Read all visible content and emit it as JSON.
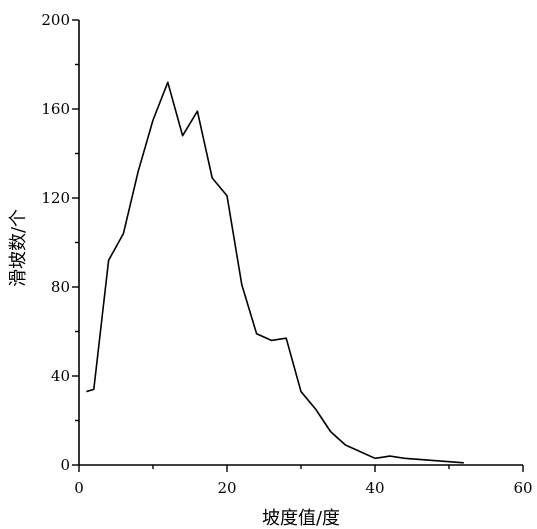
{
  "chart_data": {
    "type": "line",
    "title": "",
    "xlabel": "坡度值/度",
    "ylabel": "滑坡数/个",
    "xlim": [
      0,
      60
    ],
    "ylim": [
      0,
      200
    ],
    "x_ticks": [
      0,
      20,
      40,
      60
    ],
    "y_ticks": [
      0,
      40,
      80,
      120,
      160,
      200
    ],
    "grid": false,
    "legend": "none",
    "series": [
      {
        "x": [
          1,
          2,
          4,
          6,
          8,
          10,
          12,
          14,
          16,
          18,
          20,
          22,
          24,
          26,
          28,
          30,
          32,
          34,
          36,
          38,
          40,
          42,
          44,
          46,
          48,
          50,
          52
        ],
        "y": [
          33,
          34,
          92,
          104,
          132,
          155,
          172,
          148,
          159,
          129,
          121,
          81,
          59,
          56,
          57,
          33,
          25,
          15,
          9,
          6,
          3,
          4,
          3,
          2.5,
          2,
          1.5,
          1
        ]
      }
    ]
  }
}
